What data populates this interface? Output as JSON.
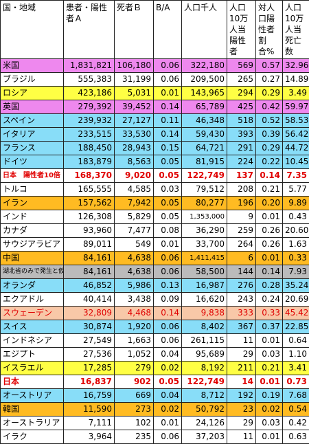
{
  "headers": [
    "国・地域",
    "患者・陽性者Ａ",
    "死者Ｂ",
    "B/A",
    "人口千人",
    "人口10万人当陽性者",
    "対人口陽性者割合%",
    "人口10万人当死亡数"
  ],
  "colors": {
    "magenta": "#ee88ee",
    "lightblue": "#88ddf8",
    "orange": "#ffbb22",
    "gray": "#bbbbbb",
    "salmon": "#f8c8a8",
    "yellow": "#ffff44",
    "white": "#ffffff"
  },
  "rows": [
    {
      "name": "米国",
      "a": "1,831,821",
      "b": "106,180",
      "ba": "0.06",
      "pop": "322,180",
      "per": "569",
      "pct": "0.57",
      "death": "32.96",
      "color": "magenta"
    },
    {
      "name": "ブラジル",
      "a": "555,383",
      "b": "31,199",
      "ba": "0.06",
      "pop": "209,500",
      "per": "265",
      "pct": "0.27",
      "death": "14.89",
      "color": "white"
    },
    {
      "name": "ロシア",
      "a": "423,186",
      "b": "5,031",
      "ba": "0.01",
      "pop": "143,965",
      "per": "294",
      "pct": "0.29",
      "death": "3.49",
      "color": "yellow"
    },
    {
      "name": "英国",
      "a": "279,392",
      "b": "39,452",
      "ba": "0.14",
      "pop": "65,789",
      "per": "425",
      "pct": "0.42",
      "death": "59.97",
      "color": "magenta"
    },
    {
      "name": "スペイン",
      "a": "239,932",
      "b": "27,127",
      "ba": "0.11",
      "pop": "46,348",
      "per": "518",
      "pct": "0.52",
      "death": "58.53",
      "color": "lightblue"
    },
    {
      "name": "イタリア",
      "a": "233,515",
      "b": "33,530",
      "ba": "0.14",
      "pop": "59,430",
      "per": "393",
      "pct": "0.39",
      "death": "56.42",
      "color": "lightblue"
    },
    {
      "name": "フランス",
      "a": "188,450",
      "b": "28,943",
      "ba": "0.15",
      "pop": "64,721",
      "per": "291",
      "pct": "0.29",
      "death": "44.72",
      "color": "lightblue"
    },
    {
      "name": "ドイツ",
      "a": "183,879",
      "b": "8,563",
      "ba": "0.05",
      "pop": "81,915",
      "per": "224",
      "pct": "0.22",
      "death": "10.45",
      "color": "lightblue"
    },
    {
      "name": "日本　陽性者10倍",
      "a": "168,370",
      "b": "9,020",
      "ba": "0.05",
      "pop": "122,749",
      "per": "137",
      "pct": "0.14",
      "death": "7.35",
      "color": "white",
      "bold": true,
      "nameSize": "small"
    },
    {
      "name": "トルコ",
      "a": "165,555",
      "b": "4,585",
      "ba": "0.03",
      "pop": "79,512",
      "per": "208",
      "pct": "0.21",
      "death": "5.77",
      "color": "white"
    },
    {
      "name": "イラン",
      "a": "157,562",
      "b": "7,942",
      "ba": "0.05",
      "pop": "80,277",
      "per": "196",
      "pct": "0.20",
      "death": "9.89",
      "color": "orange"
    },
    {
      "name": "インド",
      "a": "126,308",
      "b": "5,829",
      "ba": "0.05",
      "pop": "1,353,000",
      "per": "9",
      "pct": "0.01",
      "death": "0.43",
      "color": "white",
      "popSize": "small"
    },
    {
      "name": "カナダ",
      "a": "93,960",
      "b": "7,477",
      "ba": "0.08",
      "pop": "36,290",
      "per": "259",
      "pct": "0.26",
      "death": "20.60",
      "color": "white"
    },
    {
      "name": "サウジアラビア",
      "a": "89,011",
      "b": "549",
      "ba": "0.01",
      "pop": "33,700",
      "per": "264",
      "pct": "0.26",
      "death": "1.63",
      "color": "white"
    },
    {
      "name": "中国",
      "a": "84,161",
      "b": "4,638",
      "ba": "0.06",
      "pop": "1,411,415",
      "per": "6",
      "pct": "0.01",
      "death": "0.33",
      "color": "orange",
      "popSize": "small"
    },
    {
      "name": "湖北省のみで発生と仮定",
      "a": "84,161",
      "b": "4,638",
      "ba": "0.06",
      "pop": "58,500",
      "per": "144",
      "pct": "0.14",
      "death": "7.93",
      "color": "gray",
      "nameSize": "tiny"
    },
    {
      "name": "オランダ",
      "a": "46,852",
      "b": "5,986",
      "ba": "0.13",
      "pop": "16,987",
      "per": "276",
      "pct": "0.28",
      "death": "35.24",
      "color": "lightblue"
    },
    {
      "name": "エクアドル",
      "a": "40,414",
      "b": "3,438",
      "ba": "0.09",
      "pop": "16,620",
      "per": "243",
      "pct": "0.24",
      "death": "20.69",
      "color": "white"
    },
    {
      "name": "スウェーデン",
      "a": "32,809",
      "b": "4,468",
      "ba": "0.14",
      "pop": "9,838",
      "per": "333",
      "pct": "0.33",
      "death": "45.42",
      "color": "salmon",
      "redText": true
    },
    {
      "name": "スイス",
      "a": "30,874",
      "b": "1,920",
      "ba": "0.06",
      "pop": "8,402",
      "per": "367",
      "pct": "0.37",
      "death": "22.85",
      "color": "lightblue"
    },
    {
      "name": "インドネシア",
      "a": "27,549",
      "b": "1,663",
      "ba": "0.06",
      "pop": "261,115",
      "per": "11",
      "pct": "0.01",
      "death": "0.64",
      "color": "white"
    },
    {
      "name": "エジプト",
      "a": "27,536",
      "b": "1,052",
      "ba": "0.04",
      "pop": "95,689",
      "per": "29",
      "pct": "0.03",
      "death": "1.10",
      "color": "white"
    },
    {
      "name": "イスラエル",
      "a": "17,285",
      "b": "279",
      "ba": "0.02",
      "pop": "8,192",
      "per": "211",
      "pct": "0.21",
      "death": "3.41",
      "color": "yellow"
    },
    {
      "name": "日本",
      "a": "16,837",
      "b": "902",
      "ba": "0.05",
      "pop": "122,749",
      "per": "14",
      "pct": "0.01",
      "death": "0.73",
      "color": "white",
      "bold": true
    },
    {
      "name": "オーストリア",
      "a": "16,759",
      "b": "669",
      "ba": "0.04",
      "pop": "8,712",
      "per": "192",
      "pct": "0.19",
      "death": "7.68",
      "color": "lightblue"
    },
    {
      "name": "韓国",
      "a": "11,590",
      "b": "273",
      "ba": "0.02",
      "pop": "50,792",
      "per": "23",
      "pct": "0.02",
      "death": "0.54",
      "color": "orange"
    },
    {
      "name": "オーストラリア",
      "a": "7,111",
      "b": "102",
      "ba": "0.01",
      "pop": "24,126",
      "per": "29",
      "pct": "0.03",
      "death": "0.42",
      "color": "white"
    },
    {
      "name": "イラク",
      "a": "3,964",
      "b": "235",
      "ba": "0.06",
      "pop": "37,203",
      "per": "11",
      "pct": "0.01",
      "death": "0.63",
      "color": "white"
    }
  ]
}
